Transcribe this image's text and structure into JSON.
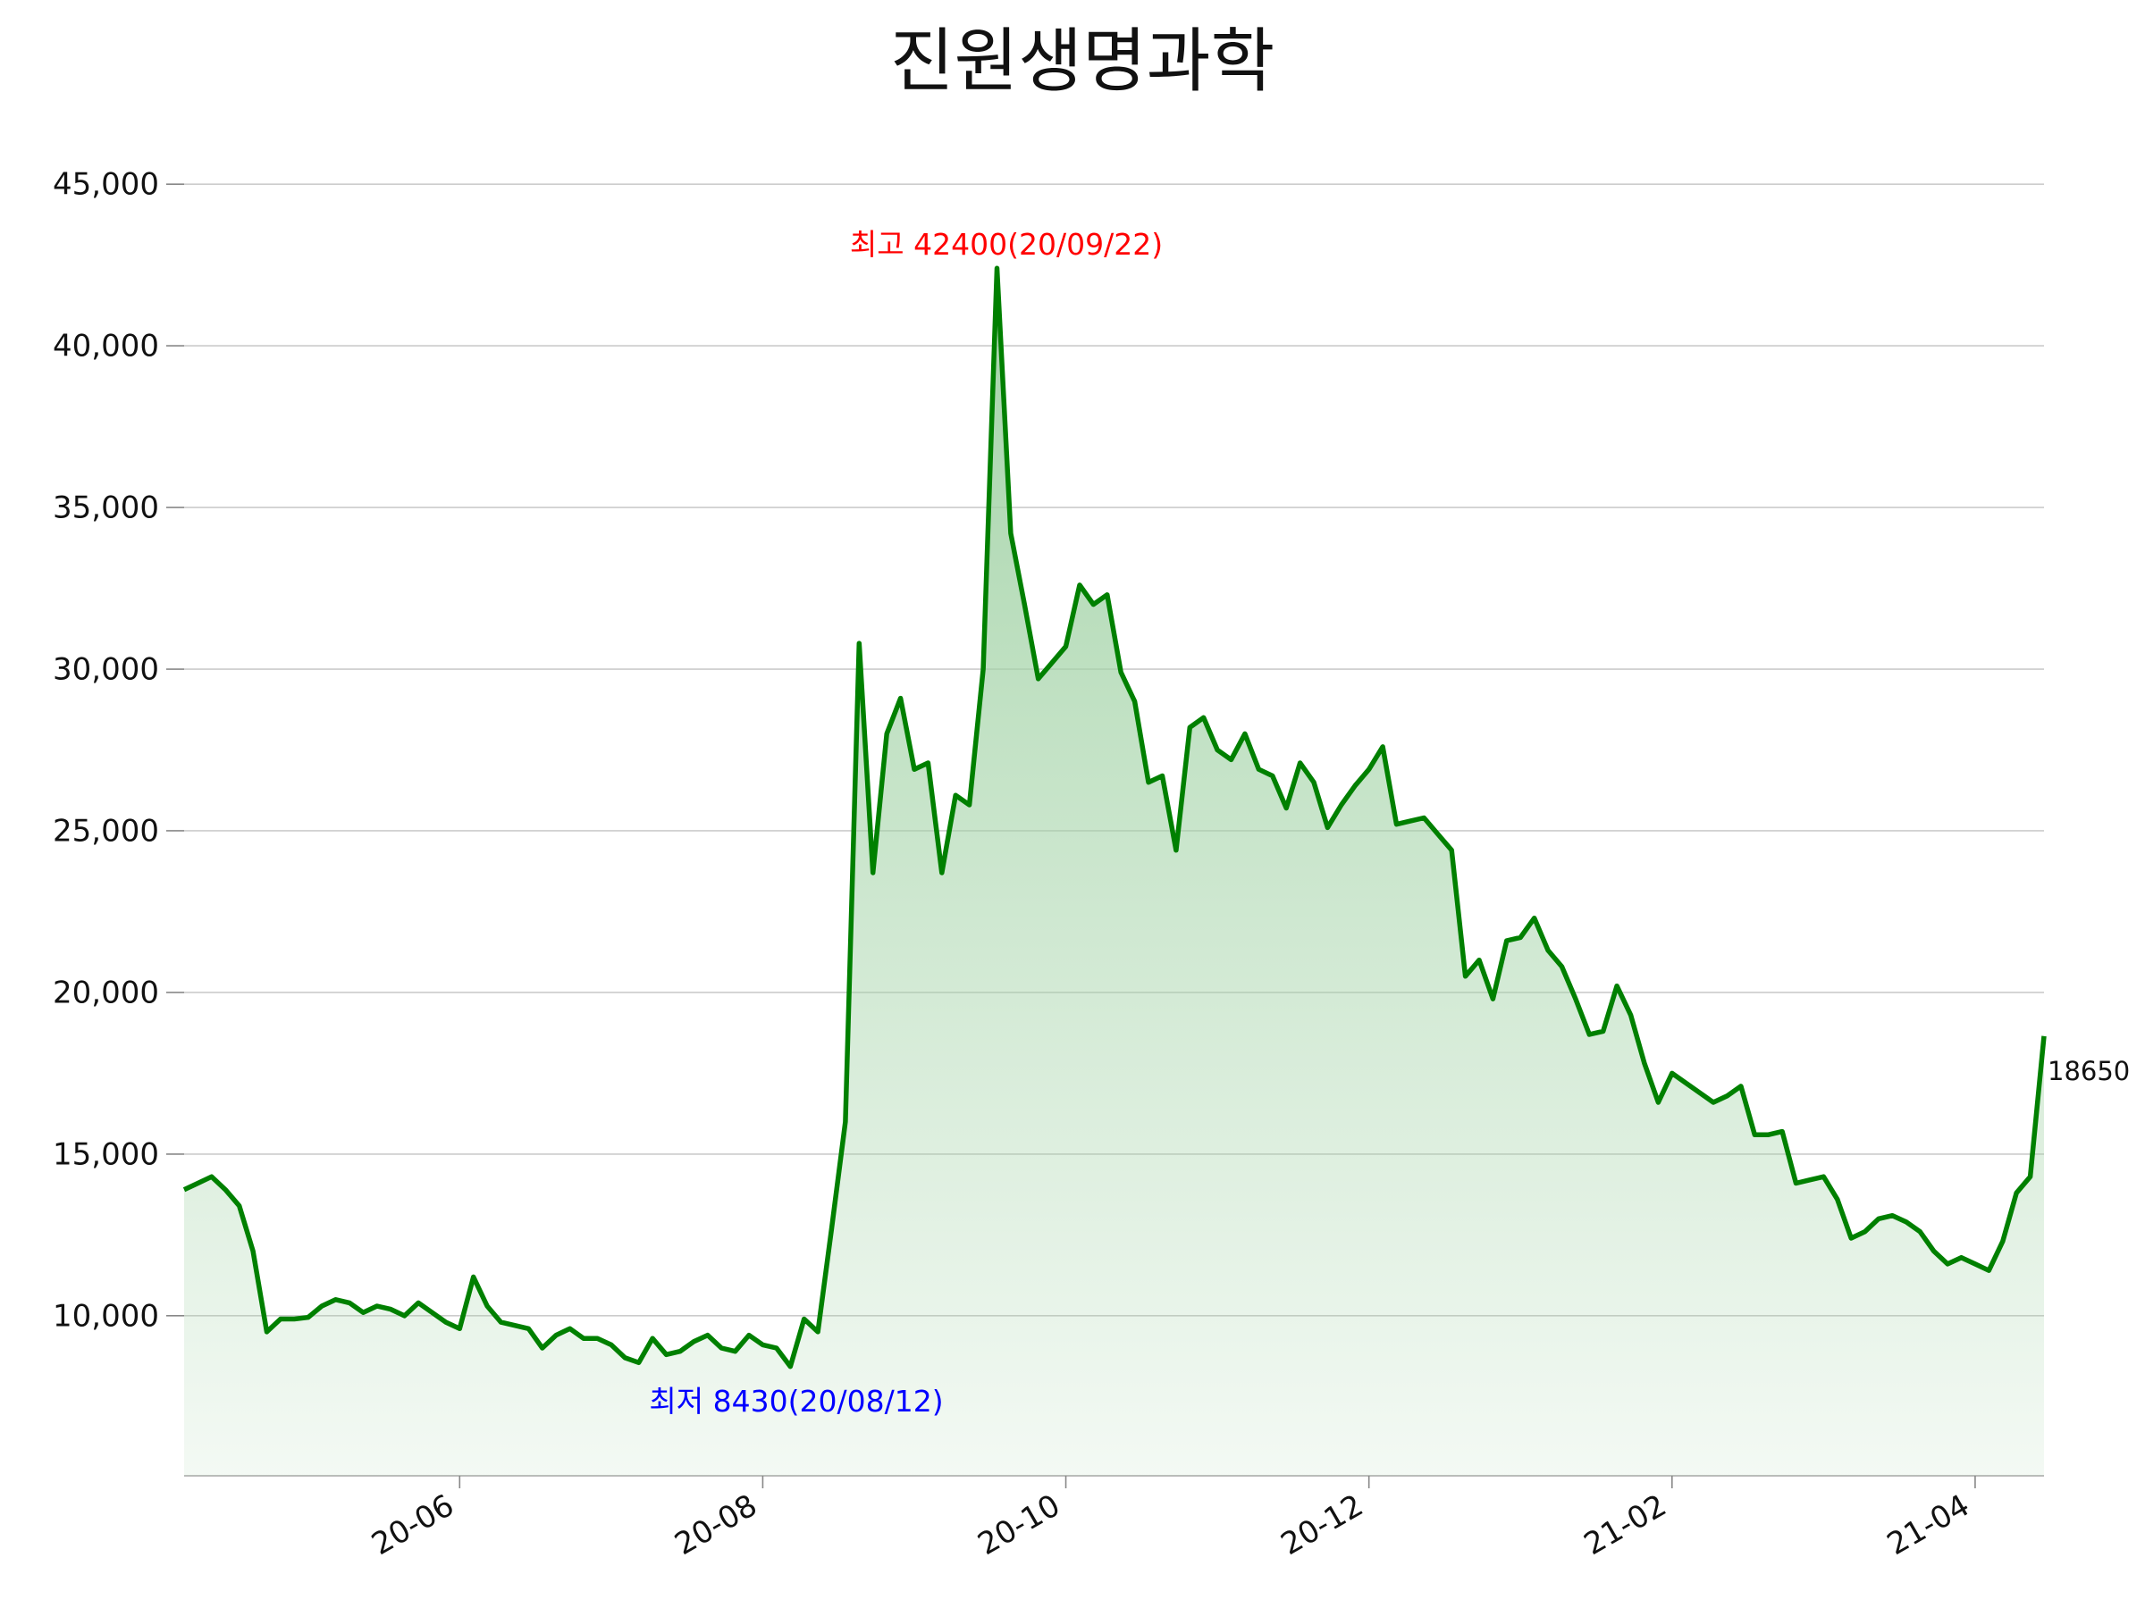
{
  "chart_data": {
    "type": "line",
    "title": "진원생명과학",
    "categories": [
      null,
      null,
      null,
      null,
      null,
      null,
      null,
      null,
      null,
      null,
      null,
      null,
      null,
      null,
      null,
      null,
      null,
      null,
      null,
      null,
      "20-06",
      null,
      null,
      null,
      null,
      null,
      null,
      null,
      null,
      null,
      null,
      null,
      null,
      null,
      null,
      null,
      null,
      null,
      null,
      null,
      null,
      null,
      "20-08",
      null,
      null,
      null,
      null,
      null,
      null,
      null,
      null,
      null,
      null,
      null,
      null,
      null,
      null,
      null,
      null,
      null,
      null,
      null,
      null,
      null,
      "20-10",
      null,
      null,
      null,
      null,
      null,
      null,
      null,
      null,
      null,
      null,
      null,
      null,
      null,
      null,
      null,
      null,
      null,
      null,
      null,
      null,
      null,
      "20-12",
      null,
      null,
      null,
      null,
      null,
      null,
      null,
      null,
      null,
      null,
      null,
      null,
      null,
      null,
      null,
      null,
      null,
      null,
      null,
      null,
      null,
      "21-02",
      null,
      null,
      null,
      null,
      null,
      null,
      null,
      null,
      null,
      null,
      null,
      null,
      null,
      null,
      null,
      null,
      null,
      null,
      null,
      null,
      null,
      "21-04",
      null,
      null,
      null,
      null,
      null
    ],
    "series": [
      {
        "color": "#008000",
        "fill_color": "#9fd1a3",
        "values": [
          13900,
          14100,
          14300,
          13900,
          13400,
          12000,
          9500,
          9900,
          9900,
          9950,
          10300,
          10500,
          10400,
          10100,
          10300,
          10200,
          10000,
          10400,
          10100,
          9800,
          9600,
          11200,
          10300,
          9800,
          9700,
          9600,
          9000,
          9400,
          9600,
          9300,
          9300,
          9100,
          8700,
          8550,
          9300,
          8800,
          8900,
          9200,
          9400,
          9000,
          8900,
          9400,
          9100,
          9000,
          8430,
          9900,
          9500,
          12700,
          16000,
          30800,
          23700,
          28000,
          29100,
          26900,
          27100,
          23700,
          26100,
          25800,
          30000,
          42400,
          34200,
          32000,
          29700,
          30200,
          30700,
          32600,
          32000,
          32300,
          29900,
          29000,
          26500,
          26700,
          24400,
          28200,
          28500,
          27500,
          27200,
          28000,
          26900,
          26700,
          25700,
          27100,
          26500,
          25100,
          25800,
          26400,
          26900,
          27600,
          25200,
          25300,
          25400,
          24900,
          24400,
          20500,
          21000,
          19800,
          21600,
          21700,
          22300,
          21300,
          20800,
          19800,
          18700,
          18800,
          20200,
          19300,
          17800,
          16600,
          17500,
          17200,
          16900,
          16600,
          16800,
          17100,
          15600,
          15600,
          15700,
          14100,
          14200,
          14300,
          13600,
          12400,
          12600,
          13000,
          13100,
          12900,
          12600,
          12000,
          11600,
          11800,
          11600,
          11400,
          12300,
          13800,
          14300,
          18650
        ]
      }
    ],
    "ylim": [
      5050,
      46800
    ],
    "yticks": [
      {
        "value": 10000,
        "label": "10,000"
      },
      {
        "value": 15000,
        "label": "15,000"
      },
      {
        "value": 20000,
        "label": "20,000"
      },
      {
        "value": 25000,
        "label": "25,000"
      },
      {
        "value": 30000,
        "label": "30,000"
      },
      {
        "value": 35000,
        "label": "35,000"
      },
      {
        "value": 40000,
        "label": "40,000"
      },
      {
        "value": 45000,
        "label": "45,000"
      }
    ],
    "grid": true,
    "annotations": [
      {
        "text": "최고 42400(20/09/22)",
        "color": "#ff0000"
      },
      {
        "text": "최저 8430(20/08/12)",
        "color": "#0000ff"
      },
      {
        "text": "18650",
        "color": "#111111"
      }
    ]
  }
}
